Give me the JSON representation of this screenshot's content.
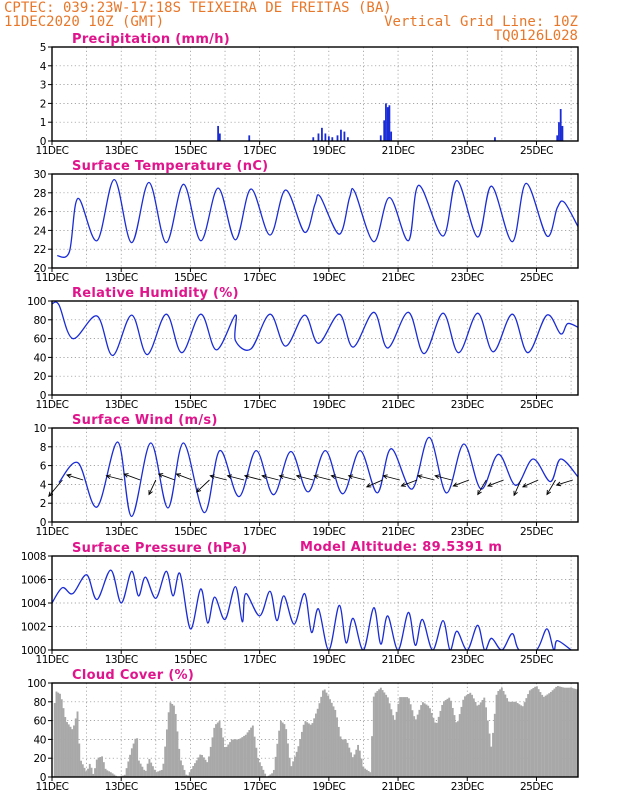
{
  "header": {
    "left_line1": "CPTEC:   039:23W-17:18S  TEIXEIRA DE FREITAS (BA)",
    "left_line2": "11DEC2020 10Z (GMT)",
    "right_line2": "Vertical Grid Line: 10Z",
    "right_line3": "TQ0126L028"
  },
  "colors": {
    "header": "#e8772a",
    "panel_title": "#e0148c",
    "series": "#1a2cd6",
    "cloud": "#a8a8a8",
    "wind_arrow": "#000000"
  },
  "chart_data": [
    {
      "type": "bar",
      "title": "Precipitation (mm/h)",
      "x_labels": [
        "11DEC",
        "13DEC",
        "15DEC",
        "17DEC",
        "19DEC",
        "21DEC",
        "23DEC",
        "25DEC"
      ],
      "x_range_days": [
        0,
        15.2
      ],
      "ylim": [
        0,
        5
      ],
      "yticks": [
        0,
        1,
        2,
        3,
        4,
        5
      ],
      "grid": true,
      "points": [
        [
          4.8,
          0.8
        ],
        [
          4.85,
          0.4
        ],
        [
          5.7,
          0.3
        ],
        [
          7.55,
          0.2
        ],
        [
          7.7,
          0.4
        ],
        [
          7.8,
          0.7
        ],
        [
          7.9,
          0.4
        ],
        [
          8.0,
          0.25
        ],
        [
          8.1,
          0.2
        ],
        [
          8.25,
          0.3
        ],
        [
          8.35,
          0.6
        ],
        [
          8.45,
          0.5
        ],
        [
          8.55,
          0.2
        ],
        [
          9.5,
          0.3
        ],
        [
          9.6,
          1.1
        ],
        [
          9.65,
          2.0
        ],
        [
          9.7,
          1.8
        ],
        [
          9.75,
          1.9
        ],
        [
          9.8,
          0.5
        ],
        [
          12.8,
          0.2
        ],
        [
          14.6,
          0.3
        ],
        [
          14.65,
          1.0
        ],
        [
          14.7,
          1.7
        ],
        [
          14.75,
          0.8
        ]
      ]
    },
    {
      "type": "line",
      "title": "Surface Temperature (nC)",
      "x_labels": [
        "11DEC",
        "13DEC",
        "15DEC",
        "17DEC",
        "19DEC",
        "21DEC",
        "23DEC",
        "25DEC"
      ],
      "ylim": [
        20,
        30
      ],
      "yticks": [
        20,
        22,
        24,
        26,
        28,
        30
      ],
      "grid": true,
      "maxima": [
        [
          0.75,
          27.4
        ],
        [
          1.8,
          29.4
        ],
        [
          2.8,
          29.1
        ],
        [
          3.8,
          28.9
        ],
        [
          4.8,
          28.5
        ],
        [
          5.75,
          28.4
        ],
        [
          6.75,
          28.3
        ],
        [
          7.6,
          26.8
        ],
        [
          7.75,
          27.6
        ],
        [
          8.6,
          27.5
        ],
        [
          8.75,
          28.1
        ],
        [
          9.75,
          27.5
        ],
        [
          10.6,
          28.8
        ],
        [
          11.7,
          29.3
        ],
        [
          12.7,
          28.7
        ],
        [
          13.7,
          29.0
        ],
        [
          14.6,
          26.4
        ],
        [
          14.8,
          27.0
        ]
      ],
      "minima": [
        [
          0.15,
          21.3
        ],
        [
          0.5,
          21.7
        ],
        [
          1.3,
          22.9
        ],
        [
          2.3,
          22.7
        ],
        [
          3.3,
          22.7
        ],
        [
          4.3,
          22.9
        ],
        [
          5.3,
          23.0
        ],
        [
          6.3,
          23.5
        ],
        [
          7.3,
          23.8
        ],
        [
          8.3,
          23.6
        ],
        [
          9.3,
          22.8
        ],
        [
          10.3,
          22.9
        ],
        [
          11.3,
          23.4
        ],
        [
          12.3,
          23.3
        ],
        [
          13.3,
          22.8
        ],
        [
          14.3,
          23.4
        ],
        [
          15.2,
          24.4
        ]
      ]
    },
    {
      "type": "line",
      "title": "Relative Humidity (%)",
      "x_labels": [
        "11DEC",
        "13DEC",
        "15DEC",
        "17DEC",
        "19DEC",
        "21DEC",
        "23DEC",
        "25DEC"
      ],
      "ylim": [
        0,
        100
      ],
      "yticks": [
        0,
        20,
        40,
        60,
        80,
        100
      ],
      "grid": true,
      "maxima": [
        [
          0,
          97
        ],
        [
          0.2,
          96
        ],
        [
          1.3,
          84
        ],
        [
          2.3,
          85
        ],
        [
          3.3,
          86
        ],
        [
          4.3,
          86
        ],
        [
          5.3,
          85
        ],
        [
          6.3,
          86
        ],
        [
          7.3,
          85
        ],
        [
          8.3,
          86
        ],
        [
          9.3,
          88
        ],
        [
          10.3,
          88
        ],
        [
          11.3,
          87
        ],
        [
          12.3,
          87
        ],
        [
          13.3,
          86
        ],
        [
          14.3,
          85
        ],
        [
          14.9,
          76
        ]
      ],
      "minima": [
        [
          0.6,
          60
        ],
        [
          1.75,
          42
        ],
        [
          2.75,
          43
        ],
        [
          3.75,
          45
        ],
        [
          4.75,
          48
        ],
        [
          5.3,
          58
        ],
        [
          5.75,
          49
        ],
        [
          6.75,
          52
        ],
        [
          7.7,
          55
        ],
        [
          8.7,
          51
        ],
        [
          9.7,
          50
        ],
        [
          10.75,
          44
        ],
        [
          11.75,
          45
        ],
        [
          12.75,
          46
        ],
        [
          13.75,
          45
        ],
        [
          14.7,
          65
        ],
        [
          15.2,
          72
        ]
      ]
    },
    {
      "type": "line",
      "title": "Surface Wind (m/s)",
      "x_labels": [
        "11DEC",
        "13DEC",
        "15DEC",
        "17DEC",
        "19DEC",
        "21DEC",
        "23DEC",
        "25DEC"
      ],
      "ylim": [
        0,
        10
      ],
      "yticks": [
        0,
        2,
        4,
        6,
        8,
        10
      ],
      "grid": true,
      "maxima": [
        [
          0.75,
          6.3
        ],
        [
          1.9,
          8.5
        ],
        [
          2.85,
          8.4
        ],
        [
          3.8,
          8.4
        ],
        [
          4.85,
          7.6
        ],
        [
          5.9,
          7.6
        ],
        [
          6.9,
          7.5
        ],
        [
          7.9,
          7.6
        ],
        [
          8.9,
          7.6
        ],
        [
          9.8,
          7.8
        ],
        [
          10.9,
          9.0
        ],
        [
          11.9,
          8.3
        ],
        [
          12.9,
          7.2
        ],
        [
          13.9,
          6.7
        ],
        [
          14.7,
          6.7
        ]
      ],
      "minima": [
        [
          0.2,
          4.2
        ],
        [
          1.3,
          1.6
        ],
        [
          2.3,
          0.6
        ],
        [
          3.35,
          1.5
        ],
        [
          4.4,
          1.0
        ],
        [
          5.4,
          2.7
        ],
        [
          6.4,
          2.9
        ],
        [
          7.4,
          3.2
        ],
        [
          8.4,
          3.0
        ],
        [
          9.4,
          3.1
        ],
        [
          10.4,
          3.5
        ],
        [
          11.4,
          3.1
        ],
        [
          12.4,
          3.5
        ],
        [
          13.4,
          3.9
        ],
        [
          14.4,
          4.3
        ],
        [
          15.2,
          4.8
        ]
      ],
      "arrows": [
        [
          0.3,
          -0.8,
          -0.95
        ],
        [
          0.9,
          -0.95,
          0.3
        ],
        [
          2.05,
          -0.97,
          0.25
        ],
        [
          2.55,
          -0.95,
          0.35
        ],
        [
          3.0,
          -0.4,
          -0.85
        ],
        [
          3.55,
          -0.95,
          0.35
        ],
        [
          4.05,
          -0.92,
          0.35
        ],
        [
          4.55,
          -0.75,
          -0.7
        ],
        [
          5.05,
          -0.97,
          0.25
        ],
        [
          5.55,
          -0.97,
          0.25
        ],
        [
          6.05,
          -0.97,
          0.25
        ],
        [
          6.55,
          -0.97,
          0.25
        ],
        [
          7.05,
          -0.97,
          0.25
        ],
        [
          7.55,
          -0.97,
          0.25
        ],
        [
          8.05,
          -0.97,
          0.25
        ],
        [
          8.55,
          -0.97,
          0.25
        ],
        [
          9.05,
          -0.97,
          0.25
        ],
        [
          9.55,
          -0.92,
          -0.4
        ],
        [
          10.05,
          -0.97,
          0.25
        ],
        [
          10.55,
          -0.92,
          -0.35
        ],
        [
          11.05,
          -0.97,
          0.25
        ],
        [
          11.55,
          -0.97,
          0.25
        ],
        [
          12.05,
          -0.92,
          -0.35
        ],
        [
          12.55,
          -0.5,
          -0.85
        ],
        [
          13.05,
          -0.92,
          -0.35
        ],
        [
          13.55,
          -0.4,
          -0.9
        ],
        [
          14.05,
          -0.9,
          -0.4
        ],
        [
          14.55,
          -0.5,
          -0.85
        ],
        [
          15.05,
          -0.95,
          -0.3
        ]
      ]
    },
    {
      "type": "line",
      "title": "Surface Pressure (hPa)",
      "annotation": "Model Altitude: 89.5391 m",
      "x_labels": [
        "11DEC",
        "13DEC",
        "15DEC",
        "17DEC",
        "19DEC",
        "21DEC",
        "23DEC",
        "25DEC"
      ],
      "ylim": [
        1000,
        1008
      ],
      "yticks": [
        1000,
        1002,
        1004,
        1006,
        1008
      ],
      "grid": true,
      "maxima": [
        [
          0.3,
          1005.3
        ],
        [
          1.0,
          1006.4
        ],
        [
          1.7,
          1006.8
        ],
        [
          2.3,
          1006.7
        ],
        [
          2.7,
          1006.2
        ],
        [
          3.3,
          1006.7
        ],
        [
          3.7,
          1006.5
        ],
        [
          4.3,
          1005.2
        ],
        [
          4.7,
          1004.5
        ],
        [
          5.3,
          1005.4
        ],
        [
          5.6,
          1004.8
        ],
        [
          6.3,
          1005.0
        ],
        [
          6.7,
          1004.6
        ],
        [
          7.3,
          1004.8
        ],
        [
          7.7,
          1003.5
        ],
        [
          8.3,
          1003.8
        ],
        [
          8.7,
          1002.7
        ],
        [
          9.3,
          1003.6
        ],
        [
          9.7,
          1002.9
        ],
        [
          10.3,
          1003.2
        ],
        [
          10.7,
          1002.6
        ],
        [
          11.3,
          1002.5
        ],
        [
          11.7,
          1001.6
        ],
        [
          12.3,
          1002.1
        ],
        [
          12.7,
          1001.0
        ],
        [
          13.3,
          1001.4
        ],
        [
          14.3,
          1001.8
        ],
        [
          14.6,
          1000.8
        ]
      ],
      "minima": [
        [
          0.0,
          1004.0
        ],
        [
          0.6,
          1004.8
        ],
        [
          1.3,
          1004.3
        ],
        [
          2.0,
          1004.0
        ],
        [
          2.5,
          1004.6
        ],
        [
          3.0,
          1004.4
        ],
        [
          3.5,
          1004.6
        ],
        [
          4.0,
          1001.8
        ],
        [
          4.5,
          1002.3
        ],
        [
          5.0,
          1002.6
        ],
        [
          5.5,
          1002.4
        ],
        [
          6.0,
          1002.9
        ],
        [
          6.5,
          1002.5
        ],
        [
          7.0,
          1002.2
        ],
        [
          7.5,
          1001.5
        ],
        [
          8.0,
          1000.0
        ],
        [
          8.5,
          1000.6
        ],
        [
          9.0,
          1000.0
        ],
        [
          9.5,
          1000.5
        ],
        [
          10.0,
          1000.0
        ],
        [
          10.5,
          1000.4
        ],
        [
          11.0,
          1000.0
        ],
        [
          11.5,
          1000.0
        ],
        [
          12.0,
          1000.0
        ],
        [
          12.5,
          1000.0
        ],
        [
          13.0,
          1000.0
        ],
        [
          13.5,
          1000.0
        ],
        [
          14.0,
          1000.0
        ],
        [
          14.5,
          1000.0
        ],
        [
          15.0,
          1000.0
        ]
      ]
    },
    {
      "type": "area",
      "title": "Cloud Cover (%)",
      "x_labels": [
        "11DEC",
        "13DEC",
        "15DEC",
        "17DEC",
        "19DEC",
        "21DEC",
        "23DEC",
        "25DEC"
      ],
      "ylim": [
        0,
        100
      ],
      "yticks": [
        0,
        20,
        40,
        60,
        80,
        100
      ],
      "grid": true,
      "keypoints": [
        [
          0,
          0
        ],
        [
          0.05,
          0
        ],
        [
          0.08,
          92
        ],
        [
          0.25,
          88
        ],
        [
          0.4,
          60
        ],
        [
          0.6,
          50
        ],
        [
          0.75,
          72
        ],
        [
          0.8,
          20
        ],
        [
          1.0,
          5
        ],
        [
          1.1,
          15
        ],
        [
          1.2,
          2
        ],
        [
          1.3,
          20
        ],
        [
          1.45,
          22
        ],
        [
          1.55,
          8
        ],
        [
          1.7,
          5
        ],
        [
          1.9,
          0
        ],
        [
          2.1,
          2
        ],
        [
          2.3,
          30
        ],
        [
          2.45,
          45
        ],
        [
          2.5,
          18
        ],
        [
          2.7,
          5
        ],
        [
          2.8,
          20
        ],
        [
          3.0,
          5
        ],
        [
          3.2,
          8
        ],
        [
          3.4,
          80
        ],
        [
          3.55,
          75
        ],
        [
          3.7,
          20
        ],
        [
          3.9,
          0
        ],
        [
          4.05,
          10
        ],
        [
          4.3,
          25
        ],
        [
          4.5,
          15
        ],
        [
          4.7,
          55
        ],
        [
          4.85,
          60
        ],
        [
          5.0,
          30
        ],
        [
          5.2,
          40
        ],
        [
          5.4,
          40
        ],
        [
          5.6,
          45
        ],
        [
          5.8,
          55
        ],
        [
          5.95,
          20
        ],
        [
          6.2,
          0
        ],
        [
          6.4,
          5
        ],
        [
          6.6,
          60
        ],
        [
          6.75,
          55
        ],
        [
          6.9,
          10
        ],
        [
          7.1,
          30
        ],
        [
          7.3,
          60
        ],
        [
          7.5,
          55
        ],
        [
          7.7,
          75
        ],
        [
          7.85,
          95
        ],
        [
          8.0,
          85
        ],
        [
          8.2,
          70
        ],
        [
          8.35,
          40
        ],
        [
          8.5,
          40
        ],
        [
          8.7,
          20
        ],
        [
          8.85,
          35
        ],
        [
          9.0,
          10
        ],
        [
          9.2,
          5
        ],
        [
          9.3,
          88
        ],
        [
          9.5,
          95
        ],
        [
          9.7,
          85
        ],
        [
          9.9,
          60
        ],
        [
          10.05,
          85
        ],
        [
          10.3,
          85
        ],
        [
          10.5,
          60
        ],
        [
          10.7,
          80
        ],
        [
          10.9,
          75
        ],
        [
          11.1,
          55
        ],
        [
          11.3,
          80
        ],
        [
          11.5,
          85
        ],
        [
          11.7,
          55
        ],
        [
          11.9,
          85
        ],
        [
          12.1,
          90
        ],
        [
          12.3,
          75
        ],
        [
          12.5,
          85
        ],
        [
          12.7,
          30
        ],
        [
          12.85,
          90
        ],
        [
          13.0,
          95
        ],
        [
          13.2,
          80
        ],
        [
          13.4,
          80
        ],
        [
          13.6,
          75
        ],
        [
          13.8,
          92
        ],
        [
          14.0,
          97
        ],
        [
          14.2,
          85
        ],
        [
          14.4,
          90
        ],
        [
          14.6,
          97
        ],
        [
          14.8,
          95
        ],
        [
          15.0,
          95
        ],
        [
          15.2,
          93
        ]
      ]
    }
  ]
}
